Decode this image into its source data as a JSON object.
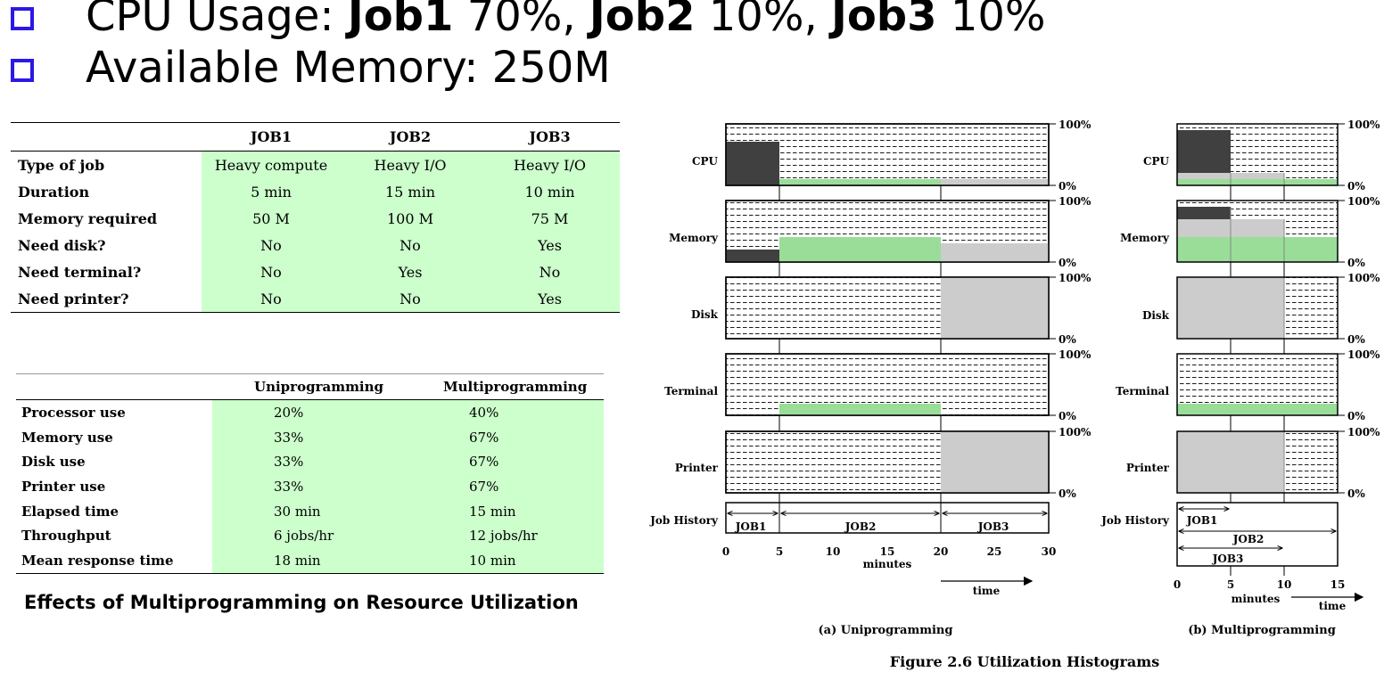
{
  "bullets": {
    "cpu": {
      "label": "CPU Usage: ",
      "job1": "Job1",
      "job1_val": " 70%, ",
      "job2": "Job2",
      "job2_val": " 10%, ",
      "job3": "Job3",
      "job3_val": " 10%"
    },
    "memory": {
      "text": "Available Memory: 250M"
    },
    "box_color": "#2b18e6"
  },
  "job_table": {
    "headers": [
      "",
      "JOB1",
      "JOB2",
      "JOB3"
    ],
    "rows": [
      {
        "label": "Type of job",
        "values": [
          "Heavy compute",
          "Heavy I/O",
          "Heavy I/O"
        ]
      },
      {
        "label": "Duration",
        "values": [
          "5 min",
          "15 min",
          "10 min"
        ]
      },
      {
        "label": "Memory required",
        "values": [
          "50 M",
          "100 M",
          "75 M"
        ]
      },
      {
        "label": "Need disk?",
        "values": [
          "No",
          "No",
          "Yes"
        ]
      },
      {
        "label": "Need terminal?",
        "values": [
          "No",
          "Yes",
          "No"
        ]
      },
      {
        "label": "Need printer?",
        "values": [
          "No",
          "No",
          "Yes"
        ]
      }
    ],
    "highlight_color": "#ccffcc"
  },
  "effects_table": {
    "headers": [
      "",
      "Uniprogramming",
      "Multiprogramming"
    ],
    "rows": [
      {
        "label": "Processor use",
        "values": [
          "20%",
          "40%"
        ]
      },
      {
        "label": "Memory use",
        "values": [
          "33%",
          "67%"
        ]
      },
      {
        "label": "Disk use",
        "values": [
          "33%",
          "67%"
        ]
      },
      {
        "label": "Printer use",
        "values": [
          "33%",
          "67%"
        ]
      },
      {
        "label": "Elapsed time",
        "values": [
          "30 min",
          "15 min"
        ]
      },
      {
        "label": "Throughput",
        "values": [
          "6 jobs/hr",
          "12 jobs/hr"
        ]
      },
      {
        "label": "Mean response time",
        "values": [
          "18 min",
          "10 min"
        ]
      }
    ],
    "caption": "Effects of Multiprogramming on Resource Utilization"
  },
  "figure": {
    "title": "Figure 2.6  Utilization Histograms",
    "resources": [
      "CPU",
      "Memory",
      "Disk",
      "Terminal",
      "Printer"
    ],
    "pct_top": "100%",
    "pct_bottom": "0%",
    "job_history_label": "Job History",
    "minutes_label": "minutes",
    "time_label": "time",
    "colors": {
      "job1": "#404040",
      "job2": "#99dd99",
      "job3": "#cccccc"
    },
    "uni": {
      "caption": "(a) Uniprogramming",
      "x_ticks": [
        "0",
        "5",
        "10",
        "15",
        "20",
        "25",
        "30"
      ],
      "job_labels": [
        "JOB1",
        "JOB2",
        "JOB3"
      ]
    },
    "multi": {
      "caption": "(b) Multiprogramming",
      "x_ticks": [
        "0",
        "5",
        "10",
        "15"
      ],
      "job_labels": [
        "JOB1",
        "JOB2",
        "JOB3"
      ]
    }
  }
}
